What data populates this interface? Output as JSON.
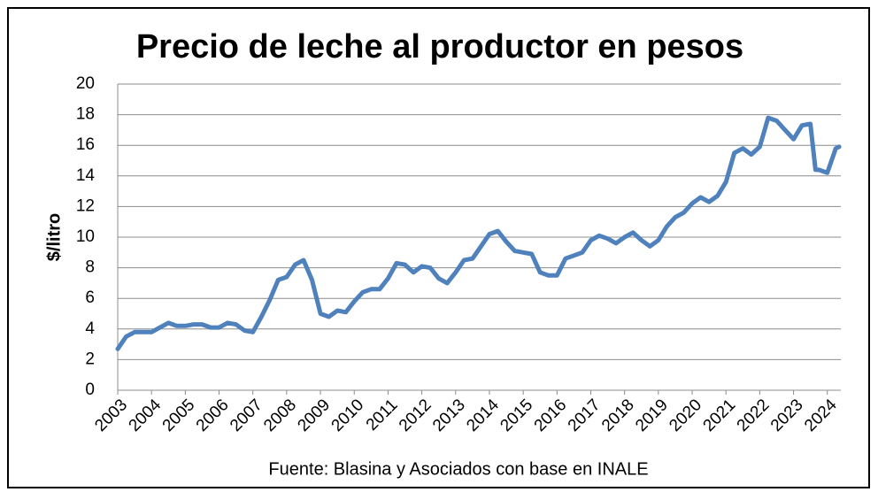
{
  "chart_data": {
    "type": "line",
    "title": "Precio de leche al productor en pesos",
    "ylabel": "$/litro",
    "note": "Fuente: Blasina y Asociados con base en INALE",
    "x": [
      2003,
      2003.25,
      2003.5,
      2003.75,
      2004,
      2004.25,
      2004.5,
      2004.75,
      2005,
      2005.25,
      2005.5,
      2005.75,
      2006,
      2006.25,
      2006.5,
      2006.75,
      2007,
      2007.25,
      2007.5,
      2007.75,
      2008,
      2008.25,
      2008.5,
      2008.75,
      2009,
      2009.25,
      2009.5,
      2009.75,
      2010,
      2010.25,
      2010.5,
      2010.75,
      2011,
      2011.25,
      2011.5,
      2011.75,
      2012,
      2012.25,
      2012.5,
      2012.75,
      2013,
      2013.25,
      2013.5,
      2013.75,
      2014,
      2014.25,
      2014.5,
      2014.75,
      2015,
      2015.25,
      2015.5,
      2015.75,
      2016,
      2016.25,
      2016.5,
      2016.75,
      2017,
      2017.25,
      2017.5,
      2017.75,
      2018,
      2018.25,
      2018.5,
      2018.75,
      2019,
      2019.25,
      2019.5,
      2019.75,
      2020,
      2020.25,
      2020.5,
      2020.75,
      2021,
      2021.25,
      2021.5,
      2021.75,
      2022,
      2022.25,
      2022.5,
      2022.75,
      2023,
      2023.25,
      2023.5,
      2023.65,
      2023.75,
      2024,
      2024.25,
      2024.35
    ],
    "series": [
      {
        "name": "Precio",
        "color": "#4f81bd",
        "values": [
          2.7,
          3.5,
          3.8,
          3.8,
          3.8,
          4.1,
          4.4,
          4.2,
          4.2,
          4.3,
          4.3,
          4.1,
          4.1,
          4.4,
          4.3,
          3.9,
          3.8,
          4.8,
          5.9,
          7.2,
          7.4,
          8.2,
          8.5,
          7.2,
          5.0,
          4.8,
          5.2,
          5.1,
          5.8,
          6.4,
          6.6,
          6.6,
          7.3,
          8.3,
          8.2,
          7.7,
          8.1,
          8.0,
          7.3,
          7.0,
          7.7,
          8.5,
          8.6,
          9.4,
          10.2,
          10.4,
          9.7,
          9.1,
          9.0,
          8.9,
          7.7,
          7.5,
          7.5,
          8.6,
          8.8,
          9.0,
          9.8,
          10.1,
          9.9,
          9.6,
          10.0,
          10.3,
          9.8,
          9.4,
          9.8,
          10.7,
          11.3,
          11.6,
          12.2,
          12.6,
          12.3,
          12.7,
          13.6,
          15.5,
          15.8,
          15.4,
          15.9,
          17.8,
          17.6,
          17.0,
          16.4,
          17.3,
          17.4,
          14.4,
          14.4,
          14.2,
          15.8,
          15.9
        ]
      }
    ],
    "xlim": [
      2003,
      2024.4
    ],
    "xticks": [
      2003,
      2004,
      2005,
      2006,
      2007,
      2008,
      2009,
      2010,
      2011,
      2012,
      2013,
      2014,
      2015,
      2016,
      2017,
      2018,
      2019,
      2020,
      2021,
      2022,
      2023,
      2024
    ],
    "ylim": [
      0,
      20
    ],
    "yticks": [
      0,
      2,
      4,
      6,
      8,
      10,
      12,
      14,
      16,
      18,
      20
    ],
    "grid": true
  }
}
